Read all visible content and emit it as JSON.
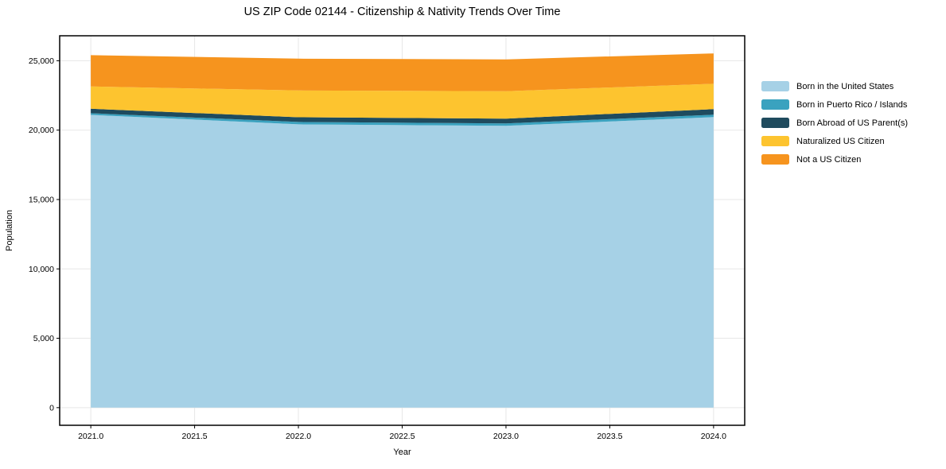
{
  "chart_data": {
    "type": "area",
    "stacked": true,
    "title": "US ZIP Code 02144 - Citizenship & Nativity Trends Over Time",
    "xlabel": "Year",
    "ylabel": "Population",
    "x": [
      2021,
      2022,
      2023,
      2024
    ],
    "series": [
      {
        "name": "Born in the United States",
        "color": "#a6d1e6",
        "values": [
          21100,
          20420,
          20310,
          20940
        ]
      },
      {
        "name": "Born in Puerto Rico / Islands",
        "color": "#3aa2bf",
        "values": [
          120,
          170,
          170,
          170
        ]
      },
      {
        "name": "Born Abroad of US Parent(s)",
        "color": "#1f4b5e",
        "values": [
          320,
          340,
          350,
          400
        ]
      },
      {
        "name": "Naturalized US Citizen",
        "color": "#fdc42f",
        "values": [
          1610,
          1930,
          1980,
          1830
        ]
      },
      {
        "name": "Not a US Citizen",
        "color": "#f6941e",
        "values": [
          2250,
          2290,
          2290,
          2190
        ]
      }
    ],
    "xticks": {
      "values": [
        2021.0,
        2021.5,
        2022.0,
        2022.5,
        2023.0,
        2023.5,
        2024.0
      ],
      "labels": [
        "2021.0",
        "2021.5",
        "2022.0",
        "2022.5",
        "2023.0",
        "2023.5",
        "2024.0"
      ]
    },
    "yticks": {
      "values": [
        0,
        5000,
        10000,
        15000,
        20000,
        25000
      ],
      "labels": [
        "0",
        "5,000",
        "10,000",
        "15,000",
        "20,000",
        "25,000"
      ]
    },
    "xlim": [
      2020.85,
      2024.15
    ],
    "ylim": [
      -1270,
      26800
    ],
    "grid": true,
    "grid_color": "#e7e7e7",
    "frame_color": "#000000",
    "legend_position": "right"
  }
}
